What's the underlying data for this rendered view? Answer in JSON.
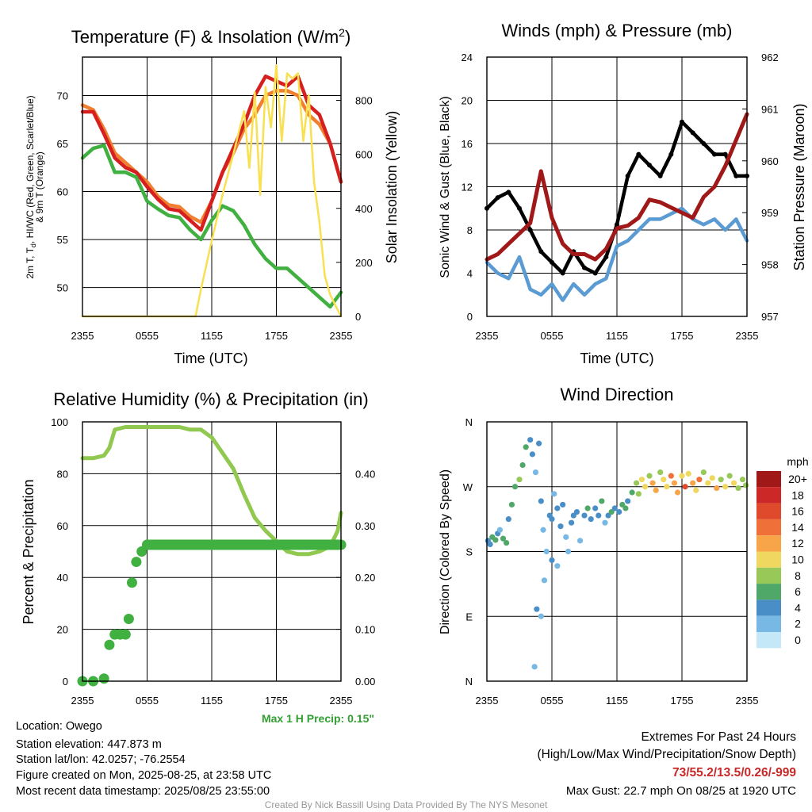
{
  "chart_data": [
    {
      "type": "line",
      "title": "Temperature (F) & Insolation (W/m²)",
      "title_parts": [
        "Temperature (F) & Insolation (W/m",
        "2",
        ")"
      ],
      "xlabel": "Time (UTC)",
      "ylabel_left": [
        "2m T, T",
        "d",
        ", HI/WC (Red, Green, Scarlet/Blue)",
        "& 9m T (Orange)"
      ],
      "ylabel_right": "Solar Insolation (Yellow)",
      "x_ticks": [
        "2355",
        "0555",
        "1155",
        "1755",
        "2355"
      ],
      "x_range_hours": [
        0,
        24
      ],
      "ylim_left": [
        47,
        74
      ],
      "yticks_left": [
        50,
        55,
        60,
        65,
        70
      ],
      "ylim_right": [
        0,
        960
      ],
      "yticks_right": [
        0,
        200,
        400,
        600,
        800
      ],
      "grid": true,
      "series": [
        {
          "color": "#f08030",
          "axis": "left",
          "x": [
            0,
            1,
            2,
            3,
            4,
            5,
            6,
            7,
            8,
            9,
            10,
            11,
            12,
            13,
            14,
            15,
            16,
            17,
            18,
            19,
            20,
            21,
            22,
            23,
            24
          ],
          "values": [
            69,
            68.5,
            66.5,
            64,
            63,
            62,
            61,
            59.5,
            58.6,
            58.4,
            57.4,
            56.8,
            59,
            62,
            64,
            66.5,
            68,
            70,
            70.5,
            70.5,
            70,
            68,
            67,
            65,
            61
          ]
        },
        {
          "color": "#d62020",
          "axis": "left",
          "x": [
            0,
            1,
            2,
            3,
            4,
            5,
            6,
            7,
            8,
            9,
            10,
            11,
            12,
            13,
            14,
            15,
            16,
            17,
            18,
            19,
            20,
            21,
            22,
            23,
            24
          ],
          "values": [
            68.3,
            68.3,
            66,
            63.5,
            62.5,
            62,
            60.5,
            59.2,
            58.2,
            58,
            57,
            56,
            59,
            62,
            64.5,
            67,
            70,
            72,
            71.5,
            71,
            72,
            69,
            68,
            65,
            61
          ]
        },
        {
          "color": "#40b040",
          "axis": "left",
          "x": [
            0,
            1,
            2,
            3,
            4,
            5,
            6,
            7,
            8,
            9,
            10,
            11,
            12,
            13,
            14,
            15,
            16,
            17,
            18,
            19,
            20,
            21,
            22,
            23,
            24
          ],
          "values": [
            63.5,
            64.5,
            64.8,
            62,
            62,
            61.5,
            59,
            58.2,
            57.5,
            57.3,
            56,
            55,
            57,
            58.5,
            58,
            56.5,
            54.5,
            53,
            52,
            52,
            51,
            50,
            49,
            48,
            49.5
          ]
        },
        {
          "color": "#f8e050",
          "axis": "right",
          "x": [
            0,
            8,
            10.5,
            11,
            12,
            13,
            14,
            15,
            15.5,
            16,
            16.5,
            17,
            17.5,
            18,
            18.5,
            19,
            19.5,
            20,
            20.5,
            21,
            21.5,
            22,
            22.5,
            23,
            24
          ],
          "values": [
            0,
            0,
            0,
            100,
            280,
            450,
            600,
            760,
            550,
            830,
            450,
            850,
            700,
            930,
            650,
            900,
            880,
            900,
            650,
            820,
            500,
            350,
            150,
            80,
            0
          ]
        }
      ]
    },
    {
      "type": "line",
      "title": "Winds (mph) & Pressure (mb)",
      "xlabel": "Time (UTC)",
      "ylabel_left": "Sonic Wind & Gust (Blue, Black)",
      "ylabel_right": "Station Pressure (Maroon)",
      "x_ticks": [
        "2355",
        "0555",
        "1155",
        "1755",
        "2355"
      ],
      "ylim_left": [
        0,
        24
      ],
      "yticks_left": [
        0,
        4,
        8,
        12,
        16,
        20,
        24
      ],
      "ylim_right": [
        957,
        962
      ],
      "yticks_right": [
        957,
        958,
        959,
        960,
        961,
        962
      ],
      "grid": true,
      "series": [
        {
          "color": "#5a9bd4",
          "axis": "left",
          "x": [
            0,
            1,
            2,
            3,
            4,
            5,
            6,
            7,
            8,
            9,
            10,
            11,
            12,
            13,
            14,
            15,
            16,
            17,
            18,
            19,
            20,
            21,
            22,
            23,
            24
          ],
          "values": [
            5,
            4,
            3.5,
            5.5,
            2.5,
            2,
            3,
            1.5,
            3,
            2,
            3,
            3.5,
            6.5,
            7,
            8,
            9,
            9,
            9.5,
            10,
            9,
            8.5,
            9,
            8,
            9,
            7
          ]
        },
        {
          "color": "#000000",
          "axis": "left",
          "x": [
            0,
            1,
            2,
            3,
            4,
            5,
            6,
            7,
            8,
            9,
            10,
            11,
            12,
            13,
            14,
            15,
            16,
            17,
            18,
            19,
            20,
            21,
            22,
            23,
            24
          ],
          "values": [
            10,
            11,
            11.5,
            10,
            8,
            6,
            5,
            4,
            6,
            4.5,
            4,
            5.5,
            8.5,
            13,
            15,
            14,
            13,
            15,
            18,
            17,
            16,
            15,
            15,
            13,
            13
          ]
        },
        {
          "color": "#a01818",
          "axis": "right",
          "x": [
            0,
            1,
            2,
            3,
            4,
            5,
            6,
            7,
            8,
            9,
            10,
            11,
            12,
            13,
            14,
            15,
            16,
            17,
            18,
            19,
            20,
            21,
            22,
            23,
            24
          ],
          "values": [
            958.1,
            958.2,
            958.4,
            958.6,
            958.8,
            959.8,
            958.9,
            958.4,
            958.2,
            958.2,
            958.1,
            958.3,
            958.7,
            958.75,
            958.9,
            959.25,
            959.2,
            959.1,
            959.0,
            958.9,
            959.3,
            959.5,
            959.9,
            960.4,
            960.9
          ]
        }
      ]
    },
    {
      "type": "line",
      "title": "Relative Humidity (%) & Precipitation (in)",
      "ylabel_left": "Percent & Precipitation",
      "x_ticks": [
        "2355",
        "0555",
        "1155",
        "1755",
        "2355"
      ],
      "ylim_left": [
        0,
        100
      ],
      "yticks_left": [
        0,
        20,
        40,
        60,
        80,
        100
      ],
      "ylim_right": [
        0,
        0.5
      ],
      "yticks_right": [
        "0.00",
        "0.10",
        "0.20",
        "0.30",
        "0.40"
      ],
      "grid": true,
      "annotation": "Max 1 H Precip: 0.15\"",
      "series": [
        {
          "color": "#90c850",
          "axis": "left",
          "x": [
            0,
            1,
            2,
            2.5,
            3,
            4,
            5,
            6,
            7,
            8,
            9,
            10,
            11,
            12,
            13,
            14,
            15,
            16,
            17,
            18,
            19,
            20,
            21,
            22,
            23,
            23.7,
            24
          ],
          "values": [
            86,
            86,
            87,
            90,
            97,
            98,
            98,
            98,
            98,
            98,
            98,
            97,
            97,
            94,
            88,
            82,
            72,
            63,
            58,
            54,
            50,
            49,
            49,
            50,
            52,
            58,
            65
          ]
        },
        {
          "color": "#40b040",
          "axis": "right",
          "points": true,
          "x": [
            0,
            1,
            2,
            2.5,
            3,
            3.5,
            4,
            4.3,
            4.6,
            5,
            5.5,
            6,
            8,
            10,
            12,
            14,
            16,
            18,
            20,
            22,
            24
          ],
          "values": [
            0,
            0,
            0.005,
            0.07,
            0.09,
            0.09,
            0.09,
            0.12,
            0.19,
            0.23,
            0.25,
            0.263,
            0.263,
            0.263,
            0.263,
            0.263,
            0.263,
            0.263,
            0.263,
            0.263,
            0.263
          ]
        }
      ]
    },
    {
      "type": "scatter",
      "title": "Wind Direction",
      "ylabel_left": "Direction (Colored By Speed)",
      "x_ticks": [
        "2355",
        "0555",
        "1155",
        "1755",
        "2355"
      ],
      "y_ticks": [
        "N",
        "E",
        "S",
        "W",
        "N"
      ],
      "ylim_left": [
        0,
        360
      ],
      "grid": true,
      "colorbar_title": "mph",
      "colorbar_labels": [
        "20+",
        "18",
        "16",
        "14",
        "12",
        "10",
        "8",
        "6",
        "4",
        "2",
        "0"
      ],
      "colorbar_colors": [
        "#a01818",
        "#cc2828",
        "#e04a2c",
        "#f0703a",
        "#f8a448",
        "#f0d860",
        "#98c858",
        "#50a868",
        "#4a8ec8",
        "#78b8e4",
        "#c4e8f8"
      ],
      "points": [
        [
          0.1,
          195,
          4
        ],
        [
          0.3,
          190,
          4
        ],
        [
          0.5,
          200,
          5
        ],
        [
          0.8,
          196,
          6
        ],
        [
          1.0,
          205,
          3
        ],
        [
          1.2,
          210,
          2
        ],
        [
          1.5,
          198,
          6
        ],
        [
          1.8,
          192,
          5
        ],
        [
          2.0,
          225,
          4
        ],
        [
          2.3,
          245,
          5
        ],
        [
          2.6,
          270,
          6
        ],
        [
          3.0,
          280,
          7
        ],
        [
          3.3,
          300,
          6
        ],
        [
          3.6,
          325,
          5
        ],
        [
          4.0,
          335,
          4
        ],
        [
          4.2,
          315,
          3
        ],
        [
          4.5,
          290,
          2
        ],
        [
          4.8,
          330,
          3
        ],
        [
          5.0,
          250,
          4
        ],
        [
          5.2,
          210,
          2
        ],
        [
          5.5,
          180,
          1
        ],
        [
          5.8,
          230,
          4
        ],
        [
          6.0,
          225,
          3
        ],
        [
          6.2,
          260,
          2
        ],
        [
          6.5,
          240,
          4
        ],
        [
          6.8,
          215,
          3
        ],
        [
          7.0,
          245,
          4
        ],
        [
          7.3,
          200,
          2
        ],
        [
          7.5,
          180,
          1
        ],
        [
          7.8,
          220,
          4
        ],
        [
          8.0,
          230,
          4
        ],
        [
          8.3,
          235,
          3
        ],
        [
          8.6,
          195,
          2
        ],
        [
          9.0,
          230,
          4
        ],
        [
          9.3,
          240,
          5
        ],
        [
          9.6,
          225,
          3
        ],
        [
          10.0,
          240,
          4
        ],
        [
          10.3,
          230,
          4
        ],
        [
          10.6,
          250,
          5
        ],
        [
          10.9,
          220,
          2
        ],
        [
          11.2,
          230,
          4
        ],
        [
          11.5,
          235,
          5
        ],
        [
          11.8,
          240,
          4
        ],
        [
          12.2,
          235,
          3
        ],
        [
          12.5,
          245,
          5
        ],
        [
          12.8,
          240,
          6
        ],
        [
          13.0,
          250,
          4
        ],
        [
          13.4,
          262,
          6
        ],
        [
          13.8,
          275,
          7
        ],
        [
          14.0,
          260,
          8
        ],
        [
          14.3,
          280,
          9
        ],
        [
          14.6,
          270,
          10
        ],
        [
          15.0,
          285,
          8
        ],
        [
          15.3,
          275,
          12
        ],
        [
          15.6,
          265,
          11
        ],
        [
          16.0,
          290,
          8
        ],
        [
          16.3,
          280,
          10
        ],
        [
          16.6,
          270,
          9
        ],
        [
          17.0,
          285,
          14
        ],
        [
          17.3,
          275,
          11
        ],
        [
          17.6,
          262,
          12
        ],
        [
          18.0,
          285,
          10
        ],
        [
          18.3,
          270,
          16
        ],
        [
          18.6,
          288,
          9
        ],
        [
          19.0,
          275,
          11
        ],
        [
          19.3,
          265,
          10
        ],
        [
          19.6,
          280,
          13
        ],
        [
          20.0,
          290,
          8
        ],
        [
          20.4,
          275,
          10
        ],
        [
          20.8,
          282,
          9
        ],
        [
          21.2,
          268,
          11
        ],
        [
          21.6,
          280,
          8
        ],
        [
          22.0,
          270,
          9
        ],
        [
          22.4,
          285,
          7
        ],
        [
          22.8,
          275,
          10
        ],
        [
          23.2,
          268,
          8
        ],
        [
          23.6,
          280,
          7
        ],
        [
          23.9,
          272,
          8
        ],
        [
          4.6,
          100,
          3
        ],
        [
          5.0,
          90,
          2
        ],
        [
          4.4,
          20,
          1
        ],
        [
          5.3,
          140,
          2
        ],
        [
          6.0,
          168,
          3
        ],
        [
          6.5,
          160,
          2
        ]
      ]
    }
  ],
  "footer": {
    "location": "Location: Owego",
    "elevation": "Station elevation: 447.873 m",
    "latlon": "Station lat/lon: 42.0257; -76.2554",
    "created": "Figure created on Mon, 2025-08-25, at 23:58 UTC",
    "recent": "Most recent data timestamp: 2025/08/25 23:55:00",
    "extremes_title": "Extremes For Past 24 Hours",
    "extremes_sub": "(High/Low/Max Wind/Precipitation/Snow Depth)",
    "extremes_values": "73/55.2/13.5/0.26/-999",
    "max_gust": "Max Gust: 22.7 mph On 08/25 at 1920 UTC",
    "credit": "Created By Nick Bassill Using Data Provided By The NYS Mesonet"
  }
}
